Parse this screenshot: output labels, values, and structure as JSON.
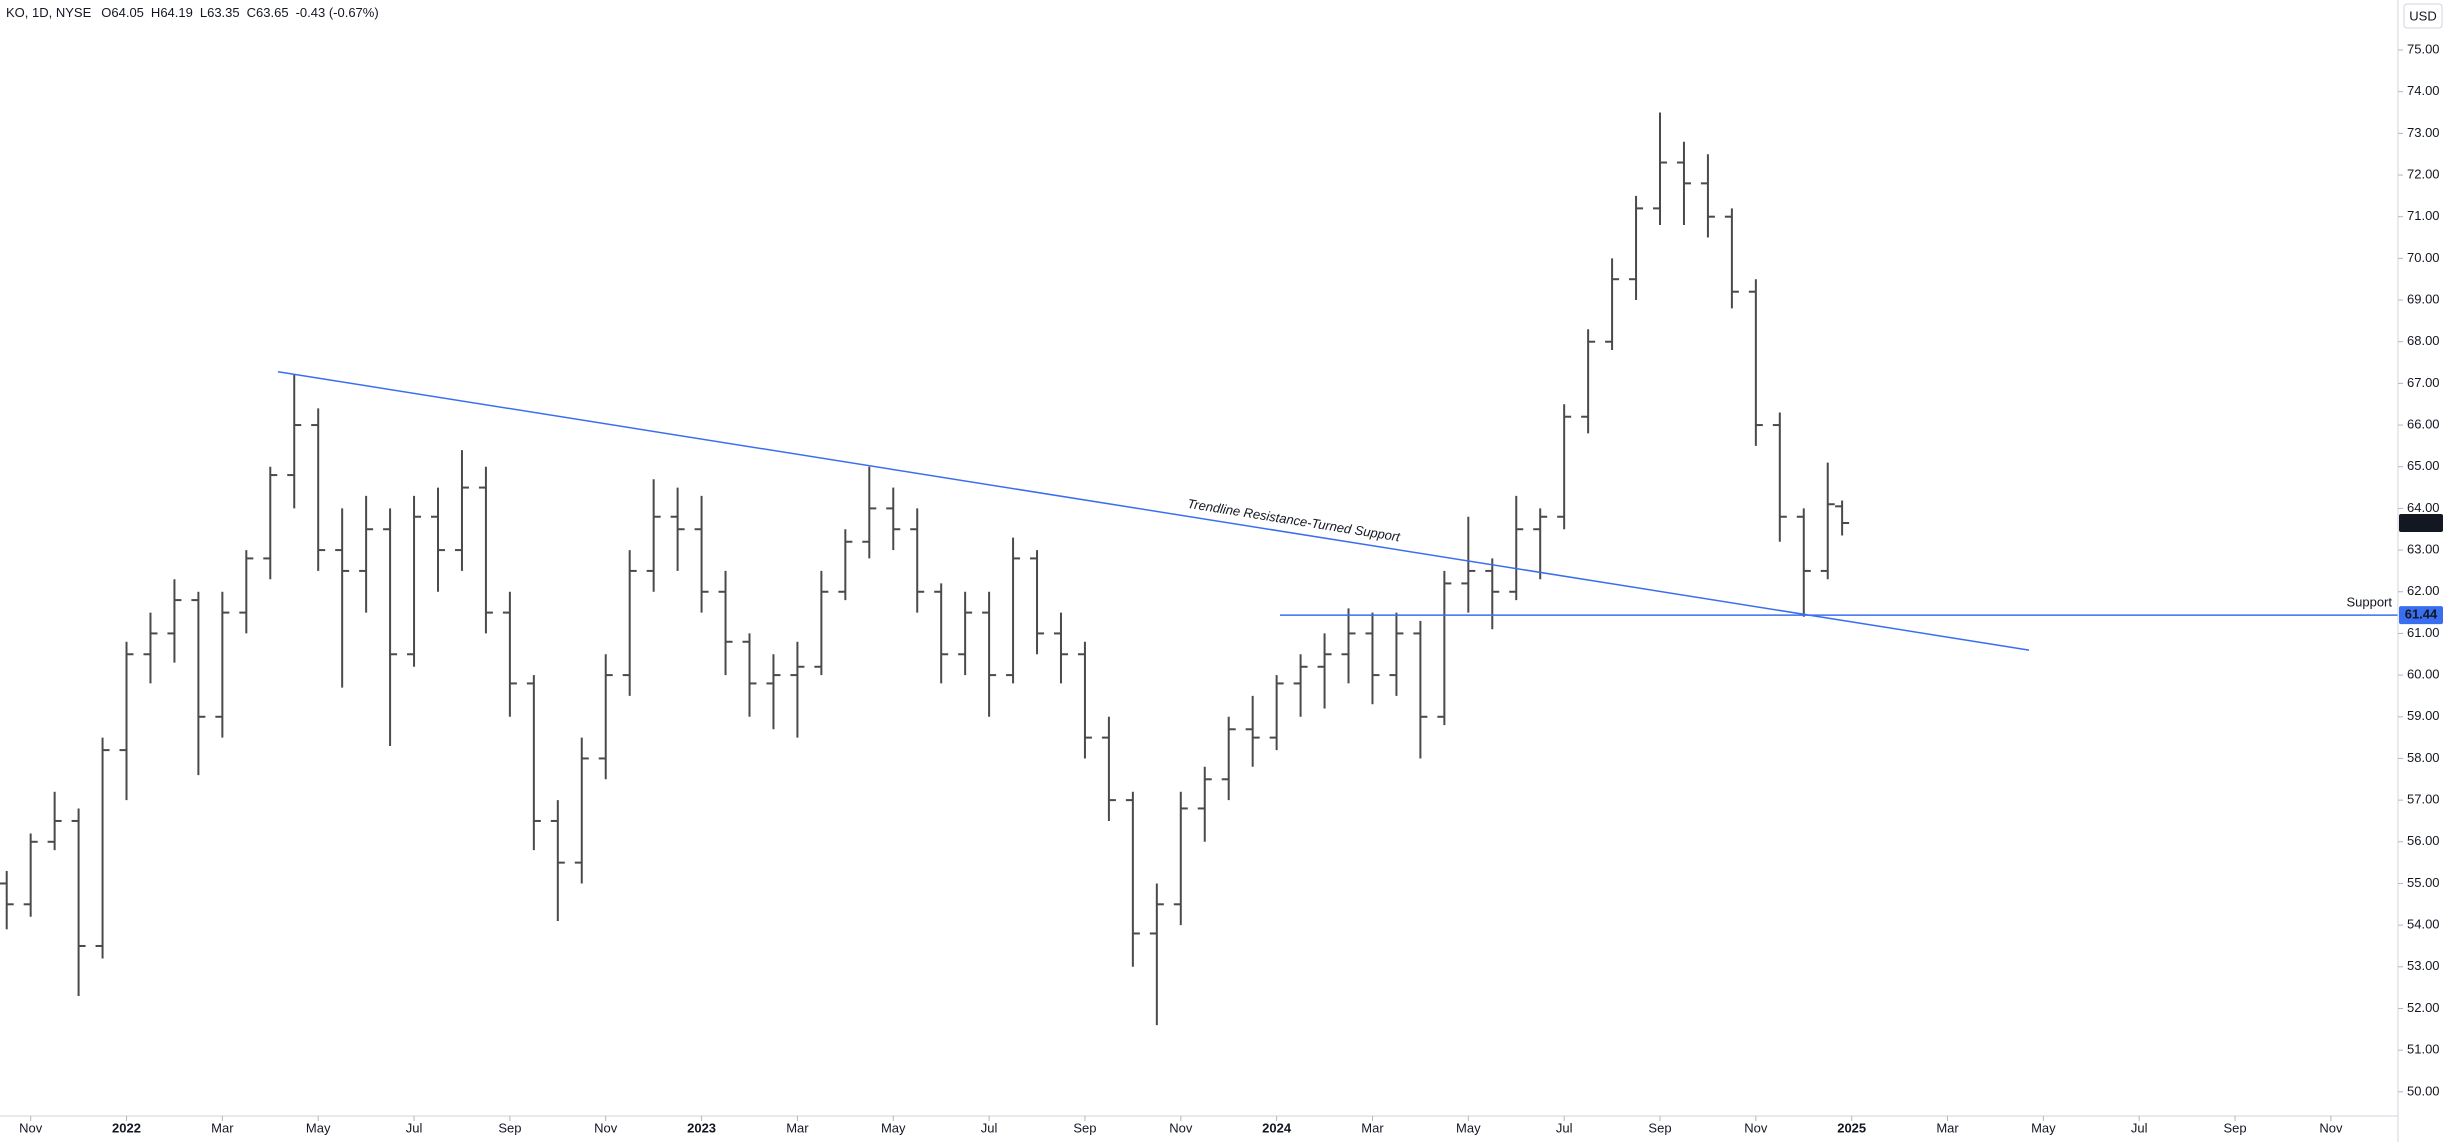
{
  "header": {
    "symbol": "KO, 1D, NYSE",
    "fields": [
      {
        "label": "O",
        "value": "64.05"
      },
      {
        "label": "H",
        "value": "64.19"
      },
      {
        "label": "L",
        "value": "63.35"
      },
      {
        "label": "C",
        "value": "63.65"
      }
    ],
    "change": "-0.43 (-0.67%)"
  },
  "chart_data": {
    "type": "ohlc",
    "currency": "USD",
    "color": "#4a4a4a",
    "line_color": "#3a6ef0",
    "x": [
      -2.5,
      -2,
      -1.5,
      -1,
      -0.5,
      0,
      0.5,
      1,
      1.5,
      2,
      2.5,
      3,
      3.5,
      4,
      4.5,
      5,
      5.5,
      6,
      6.5,
      7,
      7.5,
      8,
      8.5,
      9,
      9.5,
      10,
      10.5,
      11,
      11.5,
      12,
      12.5,
      13,
      13.5,
      14,
      14.5,
      15,
      15.5,
      16,
      16.5,
      17,
      17.5,
      18,
      18.5,
      19,
      19.5,
      20,
      20.5,
      21,
      21.5,
      22,
      22.5,
      23,
      23.5,
      24,
      24.5,
      25,
      25.5,
      26,
      26.5,
      27,
      27.5,
      28,
      28.5,
      29,
      29.5,
      30,
      30.5,
      31,
      31.5,
      32,
      32.5,
      33,
      33.5,
      34,
      34.5,
      35,
      35.5,
      35.8
    ],
    "open": [
      55.0,
      54.5,
      56.0,
      56.5,
      53.5,
      58.2,
      60.5,
      61.0,
      61.8,
      59.0,
      61.5,
      62.8,
      64.8,
      66.0,
      63.0,
      62.5,
      63.5,
      60.5,
      63.8,
      63.0,
      64.5,
      61.5,
      59.8,
      56.5,
      55.5,
      58.0,
      60.0,
      62.5,
      63.8,
      63.5,
      62.0,
      60.8,
      59.8,
      60.0,
      60.2,
      62.0,
      63.2,
      64.0,
      63.5,
      62.0,
      60.5,
      61.5,
      60.0,
      62.8,
      61.0,
      60.5,
      58.5,
      57.0,
      53.8,
      54.5,
      56.8,
      57.5,
      58.7,
      58.5,
      59.8,
      60.2,
      60.5,
      61.0,
      60.0,
      61.0,
      59.0,
      62.2,
      62.5,
      62.0,
      63.5,
      63.8,
      66.2,
      68.0,
      69.5,
      71.2,
      72.3,
      71.8,
      71.0,
      69.2,
      66.0,
      63.8,
      62.5,
      64.05
    ],
    "high": [
      55.3,
      56.2,
      57.2,
      56.8,
      58.5,
      60.8,
      61.5,
      62.3,
      62.0,
      62.0,
      63.0,
      65.0,
      67.2,
      66.4,
      64.0,
      64.3,
      64.0,
      64.3,
      64.5,
      65.4,
      65.0,
      62.0,
      60.0,
      57.0,
      58.5,
      60.5,
      63.0,
      64.7,
      64.5,
      64.3,
      62.5,
      61.0,
      60.5,
      60.8,
      62.5,
      63.5,
      65.0,
      64.5,
      64.0,
      62.2,
      62.0,
      62.0,
      63.3,
      63.0,
      61.5,
      60.8,
      59.0,
      57.2,
      55.0,
      57.2,
      57.8,
      59.0,
      59.5,
      60.0,
      60.5,
      61.0,
      61.6,
      61.5,
      61.5,
      61.3,
      62.5,
      63.8,
      62.8,
      64.3,
      64.0,
      66.5,
      68.3,
      70.0,
      71.5,
      73.5,
      72.8,
      72.5,
      71.2,
      69.5,
      66.3,
      64.0,
      65.1,
      64.19
    ],
    "low": [
      53.9,
      54.2,
      55.8,
      52.3,
      53.2,
      57.0,
      59.8,
      60.3,
      57.6,
      58.5,
      61.0,
      62.3,
      64.0,
      62.5,
      59.7,
      61.5,
      58.3,
      60.2,
      62.0,
      62.5,
      61.0,
      59.0,
      55.8,
      54.1,
      55.0,
      57.5,
      59.5,
      62.0,
      62.5,
      61.5,
      60.0,
      59.0,
      58.7,
      58.5,
      60.0,
      61.8,
      62.8,
      63.0,
      61.5,
      59.8,
      60.0,
      59.0,
      59.8,
      60.5,
      59.8,
      58.0,
      56.5,
      53.0,
      51.6,
      54.0,
      56.0,
      57.0,
      57.8,
      58.2,
      59.0,
      59.2,
      59.8,
      59.3,
      59.5,
      58.0,
      58.8,
      61.5,
      61.1,
      61.8,
      62.3,
      63.5,
      65.8,
      67.8,
      69.0,
      70.8,
      70.8,
      70.5,
      68.8,
      65.5,
      63.2,
      61.4,
      62.3,
      63.35
    ],
    "close": [
      54.5,
      56.0,
      56.5,
      53.5,
      58.2,
      60.5,
      61.0,
      61.8,
      59.0,
      61.5,
      62.8,
      64.8,
      66.0,
      63.0,
      62.5,
      63.5,
      60.5,
      63.8,
      63.0,
      64.5,
      61.5,
      59.8,
      56.5,
      55.5,
      58.0,
      60.0,
      62.5,
      63.8,
      63.5,
      62.0,
      60.8,
      59.8,
      60.0,
      60.2,
      62.0,
      63.2,
      64.0,
      63.5,
      62.0,
      60.5,
      61.5,
      60.0,
      62.8,
      61.0,
      60.5,
      58.5,
      57.0,
      53.8,
      54.5,
      56.8,
      57.5,
      58.7,
      58.5,
      59.8,
      60.2,
      60.5,
      61.0,
      60.0,
      61.0,
      59.0,
      62.2,
      62.5,
      62.0,
      63.5,
      63.8,
      66.2,
      68.0,
      69.5,
      71.2,
      72.3,
      71.8,
      71.0,
      69.2,
      66.0,
      63.8,
      62.5,
      64.1,
      63.65
    ],
    "last_price": 63.65,
    "xlim": [
      -2.64,
      47.4
    ],
    "ylim": [
      49.42,
      76.2
    ],
    "xticks": [
      {
        "value": -2,
        "label": "Nov"
      },
      {
        "value": 0,
        "label": "2022"
      },
      {
        "value": 2,
        "label": "Mar"
      },
      {
        "value": 4,
        "label": "May"
      },
      {
        "value": 6,
        "label": "Jul"
      },
      {
        "value": 8,
        "label": "Sep"
      },
      {
        "value": 10,
        "label": "Nov"
      },
      {
        "value": 12,
        "label": "2023"
      },
      {
        "value": 14,
        "label": "Mar"
      },
      {
        "value": 16,
        "label": "May"
      },
      {
        "value": 18,
        "label": "Jul"
      },
      {
        "value": 20,
        "label": "Sep"
      },
      {
        "value": 22,
        "label": "Nov"
      },
      {
        "value": 24,
        "label": "2024"
      },
      {
        "value": 26,
        "label": "Mar"
      },
      {
        "value": 28,
        "label": "May"
      },
      {
        "value": 30,
        "label": "Jul"
      },
      {
        "value": 32,
        "label": "Sep"
      },
      {
        "value": 34,
        "label": "Nov"
      },
      {
        "value": 36,
        "label": "2025"
      },
      {
        "value": 38,
        "label": "Mar"
      },
      {
        "value": 40,
        "label": "May"
      },
      {
        "value": 42,
        "label": "Jul"
      },
      {
        "value": 44,
        "label": "Sep"
      },
      {
        "value": 46,
        "label": "Nov"
      }
    ],
    "yticks": [
      {
        "value": 50,
        "label": "50.00"
      },
      {
        "value": 51,
        "label": "51.00"
      },
      {
        "value": 52,
        "label": "52.00"
      },
      {
        "value": 53,
        "label": "53.00"
      },
      {
        "value": 54,
        "label": "54.00"
      },
      {
        "value": 55,
        "label": "55.00"
      },
      {
        "value": 56,
        "label": "56.00"
      },
      {
        "value": 57,
        "label": "57.00"
      },
      {
        "value": 58,
        "label": "58.00"
      },
      {
        "value": 59,
        "label": "59.00"
      },
      {
        "value": 60,
        "label": "60.00"
      },
      {
        "value": 61,
        "label": "61.00"
      },
      {
        "value": 62,
        "label": "62.00"
      },
      {
        "value": 63,
        "label": "63.00"
      },
      {
        "value": 64,
        "label": "64.00"
      },
      {
        "value": 65,
        "label": "65.00"
      },
      {
        "value": 66,
        "label": "66.00"
      },
      {
        "value": 67,
        "label": "67.00"
      },
      {
        "value": 68,
        "label": "68.00"
      },
      {
        "value": 69,
        "label": "69.00"
      },
      {
        "value": 70,
        "label": "70.00"
      },
      {
        "value": 71,
        "label": "71.00"
      },
      {
        "value": 72,
        "label": "72.00"
      },
      {
        "value": 73,
        "label": "73.00"
      },
      {
        "value": 74,
        "label": "74.00"
      },
      {
        "value": 75,
        "label": "75.00"
      }
    ],
    "trendline": {
      "label": "Trendline Resistance-Turned Support",
      "x": [
        3.16,
        39.7
      ],
      "y": [
        67.28,
        60.6
      ]
    },
    "support": {
      "label": "Support",
      "value": 61.44,
      "x_start": 24.07
    }
  }
}
